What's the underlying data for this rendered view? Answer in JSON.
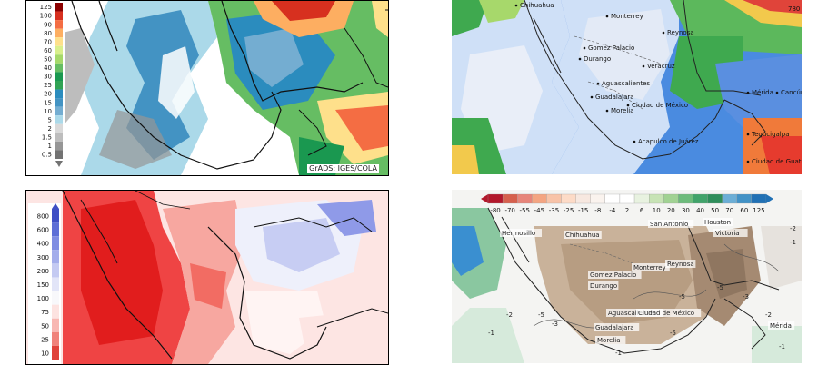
{
  "panels": {
    "top_left": {
      "colorbar_labels": [
        "125",
        "100",
        "90",
        "80",
        "70",
        "60",
        "50",
        "40",
        "30",
        "25",
        "20",
        "15",
        "10",
        "5",
        "2",
        "1.5",
        "1",
        "0.5"
      ],
      "colorbar_colors": [
        "#8b0000",
        "#d7301f",
        "#f46d43",
        "#fdae61",
        "#fee08b",
        "#d9ef8b",
        "#a6d96a",
        "#66bd63",
        "#1a9850",
        "#31a354",
        "#2b8cbe",
        "#4393c3",
        "#74add1",
        "#abd9e9",
        "#d9d9d9",
        "#bdbdbd",
        "#969696",
        "#737373"
      ],
      "credit": "GrADS: IGES/COLA"
    },
    "top_right": {
      "cities": [
        "Chihuahua",
        "Monterrey",
        "Reynosa",
        "Gomez Palacio",
        "Durango",
        "Aguascalientes",
        "Guadalajara",
        "Morelia",
        "Ciudad de México",
        "Mérida",
        "Cancún",
        "Veracruz",
        "Tegucigalpa",
        "Ciudad de Guatemala",
        "Acapulco de Juárez"
      ],
      "corner_label": "780"
    },
    "bottom_left": {
      "colorbar_labels": [
        "800",
        "600",
        "400",
        "300",
        "200",
        "150",
        "100",
        "75",
        "50",
        "25",
        "10"
      ]
    },
    "bottom_right": {
      "colorbar_labels": [
        "-80",
        "-70",
        "-55",
        "-45",
        "-35",
        "-25",
        "-15",
        "-8",
        "-4",
        "2",
        "6",
        "10",
        "20",
        "30",
        "40",
        "50",
        "70",
        "60",
        "125"
      ],
      "colorbar_colors": [
        "#b2182b",
        "#d6604d",
        "#e7857a",
        "#f4a582",
        "#f8c3a8",
        "#fddbc7",
        "#f7e8e0",
        "#faf3ee",
        "#ffffff",
        "#ffffff",
        "#e8f2e0",
        "#c7e3b5",
        "#a1d293",
        "#6dbb7b",
        "#41a36a",
        "#2f8e5b",
        "#6baed6",
        "#4292c6",
        "#2171b5"
      ],
      "cities": [
        "San Antonio",
        "Houston",
        "Victoria",
        "Hermosillo",
        "Chihuahua",
        "Monterrey",
        "Reynosa",
        "Gomez Palacio",
        "Durango",
        "Aguascalientes",
        "Guadalajara",
        "Morelia",
        "Ciudad de México",
        "Mérida"
      ],
      "contour_labels": [
        "-2",
        "-1",
        "-5",
        "-5",
        "-3",
        "-1",
        "-2",
        "-1",
        "-5",
        "-3",
        "-2",
        "-1",
        "-5"
      ]
    }
  }
}
